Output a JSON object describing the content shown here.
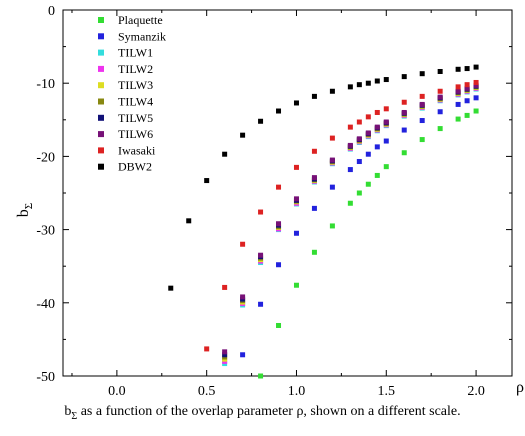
{
  "chart_data": {
    "type": "scatter",
    "title": "",
    "xlabel": "ρ",
    "ylabel": "b_Σ",
    "xlabel_main": "ρ",
    "ylabel_main": "b",
    "ylabel_sub": "Σ",
    "xlim": [
      -0.3,
      2.2
    ],
    "ylim": [
      -50,
      0
    ],
    "xticks": [
      0.0,
      0.5,
      1.0,
      1.5,
      2.0
    ],
    "xtick_labels": [
      "0.0",
      "0.5",
      "1.0",
      "1.5",
      "2.0"
    ],
    "yticks": [
      0,
      -10,
      -20,
      -30,
      -40,
      -50
    ],
    "ytick_labels": [
      "0",
      "-10",
      "-20",
      "-30",
      "-40",
      "-50"
    ],
    "grid": false,
    "legend_position": "top-left",
    "series": [
      {
        "name": "Plaquette",
        "color": "#33dd33",
        "x": [
          0.8,
          0.9,
          1.0,
          1.1,
          1.2,
          1.3,
          1.35,
          1.4,
          1.45,
          1.5,
          1.6,
          1.7,
          1.8,
          1.9,
          1.95,
          2.0
        ],
        "y": [
          -50.0,
          -43.1,
          -37.6,
          -33.1,
          -29.5,
          -26.4,
          -25.0,
          -23.8,
          -22.6,
          -21.4,
          -19.5,
          -17.7,
          -16.2,
          -14.9,
          -14.4,
          -13.8
        ]
      },
      {
        "name": "Symanzik",
        "color": "#2222dd",
        "x": [
          0.7,
          0.8,
          0.9,
          1.0,
          1.1,
          1.2,
          1.3,
          1.35,
          1.4,
          1.45,
          1.5,
          1.6,
          1.7,
          1.8,
          1.9,
          1.95,
          2.0
        ],
        "y": [
          -47.1,
          -40.2,
          -34.8,
          -30.5,
          -27.1,
          -24.2,
          -21.8,
          -20.7,
          -19.7,
          -18.7,
          -17.9,
          -16.4,
          -15.1,
          -13.9,
          -12.9,
          -12.4,
          -12.0
        ]
      },
      {
        "name": "TILW1",
        "color": "#33dddd",
        "x": [
          0.6,
          0.7,
          0.8,
          0.9,
          1.0,
          1.1,
          1.2,
          1.3,
          1.35,
          1.4,
          1.45,
          1.5,
          1.6,
          1.7,
          1.8,
          1.9,
          1.95,
          2.0
        ],
        "y": [
          -48.3,
          -40.3,
          -34.5,
          -30.0,
          -26.5,
          -23.5,
          -21.0,
          -19.0,
          -18.1,
          -17.3,
          -16.5,
          -15.8,
          -14.5,
          -13.4,
          -12.4,
          -11.6,
          -11.2,
          -10.8
        ]
      },
      {
        "name": "TILW2",
        "color": "#ee33ee",
        "x": [
          0.6,
          0.7,
          0.8,
          0.9,
          1.0,
          1.1,
          1.2,
          1.3,
          1.35,
          1.4,
          1.45,
          1.5,
          1.6,
          1.7,
          1.8,
          1.9,
          1.95,
          2.0
        ],
        "y": [
          -48.0,
          -40.1,
          -34.3,
          -29.9,
          -26.4,
          -23.4,
          -20.9,
          -18.9,
          -18.0,
          -17.2,
          -16.4,
          -15.7,
          -14.4,
          -13.3,
          -12.3,
          -11.5,
          -11.1,
          -10.7
        ]
      },
      {
        "name": "TILW3",
        "color": "#dddd22",
        "x": [
          0.6,
          0.7,
          0.8,
          0.9,
          1.0,
          1.1,
          1.2,
          1.3,
          1.35,
          1.4,
          1.45,
          1.5,
          1.6,
          1.7,
          1.8,
          1.9,
          1.95,
          2.0
        ],
        "y": [
          -47.7,
          -39.9,
          -34.1,
          -29.7,
          -26.2,
          -23.3,
          -20.8,
          -18.8,
          -17.9,
          -17.1,
          -16.3,
          -15.6,
          -14.3,
          -13.2,
          -12.2,
          -11.4,
          -11.0,
          -10.6
        ]
      },
      {
        "name": "TILW4",
        "color": "#888811",
        "x": [
          0.6,
          0.7,
          0.8,
          0.9,
          1.0,
          1.1,
          1.2,
          1.3,
          1.35,
          1.4,
          1.45,
          1.5,
          1.6,
          1.7,
          1.8,
          1.9,
          1.95,
          2.0
        ],
        "y": [
          -47.4,
          -39.7,
          -33.9,
          -29.6,
          -26.1,
          -23.2,
          -20.7,
          -18.7,
          -17.8,
          -17.0,
          -16.2,
          -15.5,
          -14.2,
          -13.1,
          -12.1,
          -11.3,
          -10.9,
          -10.5
        ]
      },
      {
        "name": "TILW5",
        "color": "#111177",
        "x": [
          0.6,
          0.7,
          0.8,
          0.9,
          1.0,
          1.1,
          1.2,
          1.3,
          1.35,
          1.4,
          1.45,
          1.5,
          1.6,
          1.7,
          1.8,
          1.9,
          1.95,
          2.0
        ],
        "y": [
          -47.1,
          -39.5,
          -33.7,
          -29.4,
          -26.0,
          -23.1,
          -20.6,
          -18.6,
          -17.7,
          -16.9,
          -16.1,
          -15.4,
          -14.1,
          -13.0,
          -12.0,
          -11.2,
          -10.8,
          -10.4
        ]
      },
      {
        "name": "TILW6",
        "color": "#771177",
        "x": [
          0.6,
          0.7,
          0.8,
          0.9,
          1.0,
          1.1,
          1.2,
          1.3,
          1.35,
          1.4,
          1.45,
          1.5,
          1.6,
          1.7,
          1.8,
          1.9,
          1.95,
          2.0
        ],
        "y": [
          -46.7,
          -39.2,
          -33.5,
          -29.2,
          -25.8,
          -22.9,
          -20.5,
          -18.5,
          -17.6,
          -16.8,
          -16.0,
          -15.3,
          -14.0,
          -12.9,
          -11.9,
          -11.1,
          -10.7,
          -10.3
        ]
      },
      {
        "name": "Iwasaki",
        "color": "#dd2222",
        "x": [
          0.5,
          0.6,
          0.7,
          0.8,
          0.9,
          1.0,
          1.1,
          1.2,
          1.3,
          1.35,
          1.4,
          1.45,
          1.5,
          1.6,
          1.7,
          1.8,
          1.9,
          1.95,
          2.0
        ],
        "y": [
          -46.3,
          -37.9,
          -32.0,
          -27.6,
          -24.2,
          -21.5,
          -19.3,
          -17.5,
          -16.0,
          -15.3,
          -14.6,
          -14.0,
          -13.5,
          -12.6,
          -11.8,
          -11.1,
          -10.5,
          -10.2,
          -9.9
        ]
      },
      {
        "name": "DBW2",
        "color": "#000000",
        "x": [
          0.3,
          0.4,
          0.5,
          0.6,
          0.7,
          0.8,
          0.9,
          1.0,
          1.1,
          1.2,
          1.3,
          1.35,
          1.4,
          1.45,
          1.5,
          1.6,
          1.7,
          1.8,
          1.9,
          1.95,
          2.0
        ],
        "y": [
          -38.0,
          -28.8,
          -23.3,
          -19.7,
          -17.1,
          -15.2,
          -13.8,
          -12.7,
          -11.8,
          -11.1,
          -10.5,
          -10.2,
          -10.0,
          -9.7,
          -9.5,
          -9.1,
          -8.7,
          -8.4,
          -8.1,
          -8.0,
          -7.8
        ]
      }
    ]
  },
  "caption": {
    "main": "b",
    "sub": "Σ",
    "rest": " as a function of the overlap parameter ρ, shown on a different scale."
  }
}
